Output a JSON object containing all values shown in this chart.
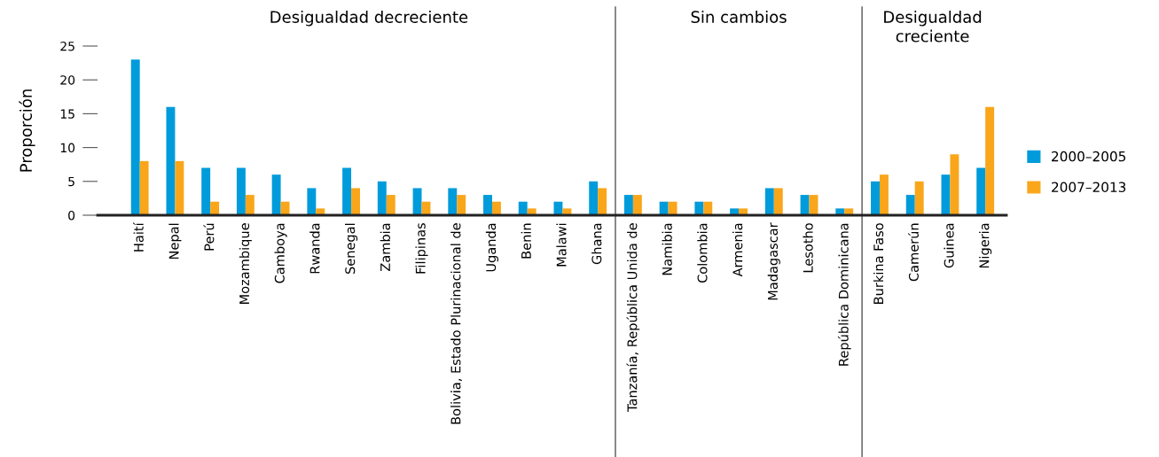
{
  "chart_data": {
    "type": "bar",
    "ylabel": "Proporción",
    "categories": [
      "Haití",
      "Nepal",
      "Perú",
      "Mozambique",
      "Camboya",
      "Rwanda",
      "Senegal",
      "Zambia",
      "Filipinas",
      "Bolivia, Estado Plurinacional de",
      "Uganda",
      "Benin",
      "Malawi",
      "Ghana",
      "Tanzanía, República Unida de",
      "Namibia",
      "Colombia",
      "Armenia",
      "Madagascar",
      "Lesotho",
      "República Dominicana",
      "Burkina Faso",
      "Camerún",
      "Guinea",
      "Nigeria"
    ],
    "series": [
      {
        "name": "2000–2005",
        "color": "#009bdb",
        "values": [
          23,
          16,
          7,
          7,
          6,
          4,
          7,
          5,
          4,
          4,
          3,
          2,
          2,
          5,
          3,
          2,
          2,
          1,
          4,
          3,
          1,
          5,
          3,
          6,
          7
        ]
      },
      {
        "name": "2007–2013",
        "color": "#f9a61b",
        "values": [
          8,
          8,
          2,
          3,
          2,
          1,
          4,
          3,
          2,
          3,
          2,
          1,
          1,
          4,
          3,
          2,
          2,
          1,
          4,
          3,
          1,
          6,
          5,
          9,
          16
        ]
      }
    ],
    "ylim": [
      0,
      25
    ],
    "yticks": [
      0,
      5,
      10,
      15,
      20,
      25
    ],
    "annotations": [
      "Desigualdad decreciente",
      "Sin cambios",
      "Desigualdad\ncreciente"
    ],
    "grid": false,
    "legend": "right"
  }
}
